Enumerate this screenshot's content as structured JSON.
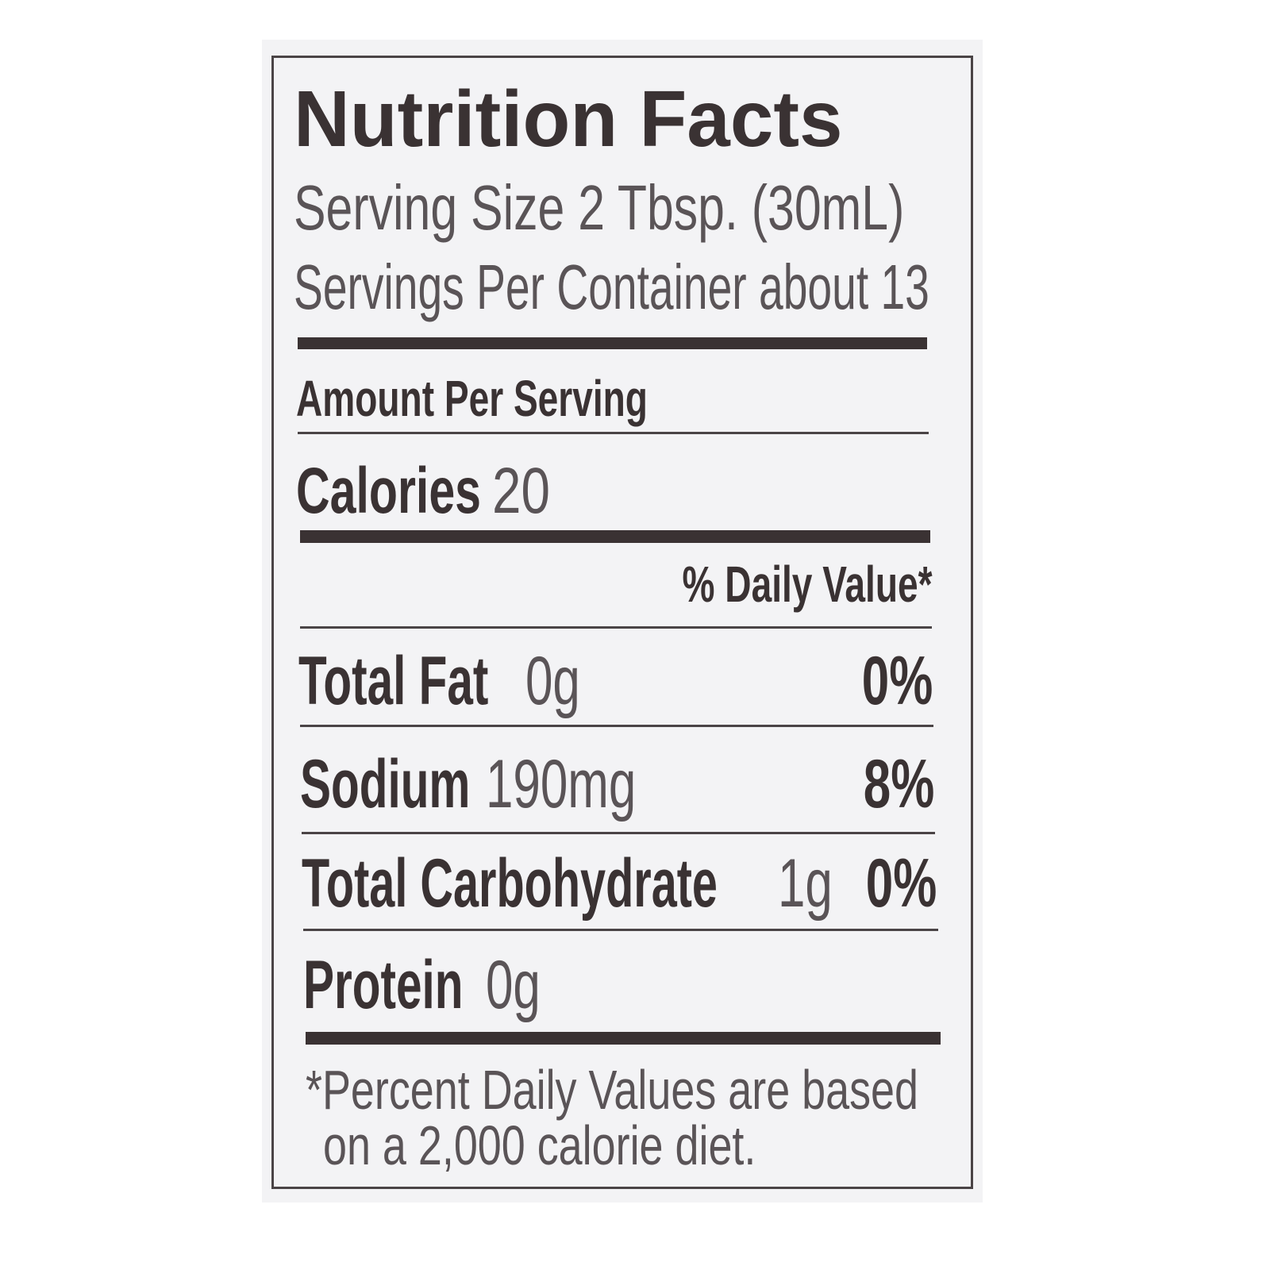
{
  "label": {
    "title": "Nutrition Facts",
    "serving_size": "Serving Size 2 Tbsp. (30mL)",
    "servings_per_container": "Servings Per Container about 13",
    "amount_per_serving": "Amount Per Serving",
    "calories_label": "Calories",
    "calories_value": "20",
    "daily_value_header": "% Daily Value*",
    "nutrients": [
      {
        "name": "Total Fat",
        "amount": "0g",
        "dv": "0%"
      },
      {
        "name": "Sodium",
        "amount": "190mg",
        "dv": "8%"
      },
      {
        "name": "Total Carbohydrate",
        "amount": "1g",
        "dv": "0%"
      },
      {
        "name": "Protein",
        "amount": "0g",
        "dv": ""
      }
    ],
    "footnote_line1": "*Percent Daily Values are based",
    "footnote_line2": "on a 2,000 calorie diet."
  },
  "colors": {
    "text": "#3a3233",
    "background": "#f3f3f5"
  }
}
